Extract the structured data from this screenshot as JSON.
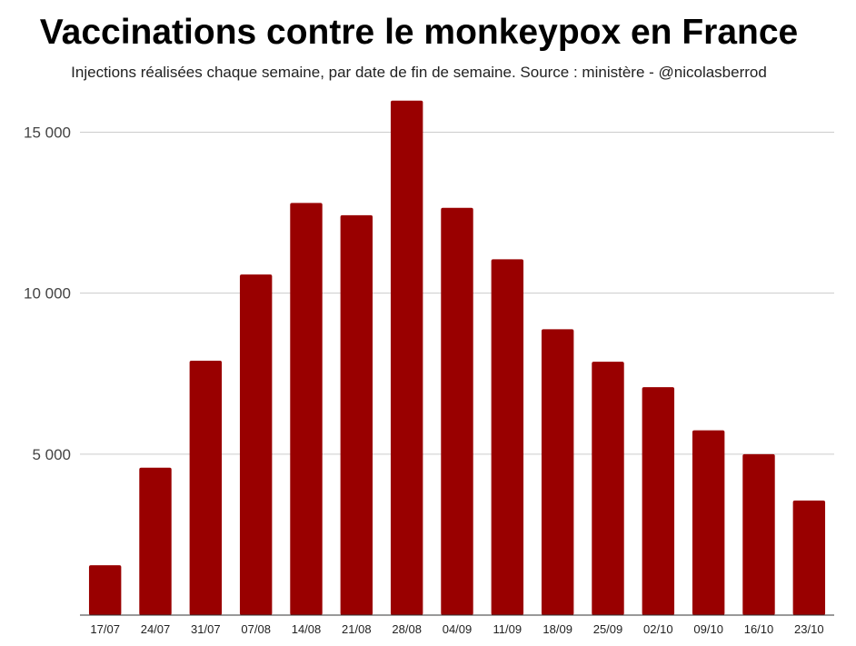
{
  "chart_data": {
    "type": "bar",
    "title": "Vaccinations contre le monkeypox en France",
    "subtitle": "Injections réalisées chaque semaine, par date de fin de semaine. Source : ministère - @nicolasberrod",
    "xlabel": "",
    "ylabel": "",
    "categories": [
      "17/07",
      "24/07",
      "31/07",
      "07/08",
      "14/08",
      "21/08",
      "28/08",
      "04/09",
      "11/09",
      "18/09",
      "25/09",
      "02/10",
      "09/10",
      "16/10",
      "23/10"
    ],
    "values": [
      1550,
      4580,
      7900,
      10580,
      12800,
      12420,
      15980,
      12650,
      11050,
      8880,
      7870,
      7080,
      5740,
      5000,
      3560
    ],
    "ylim": [
      0,
      16000
    ],
    "yticks": [
      5000,
      10000,
      15000
    ],
    "ytick_labels": [
      "5 000",
      "10 000",
      "15 000"
    ],
    "grid": true,
    "bar_color": "#990000"
  }
}
